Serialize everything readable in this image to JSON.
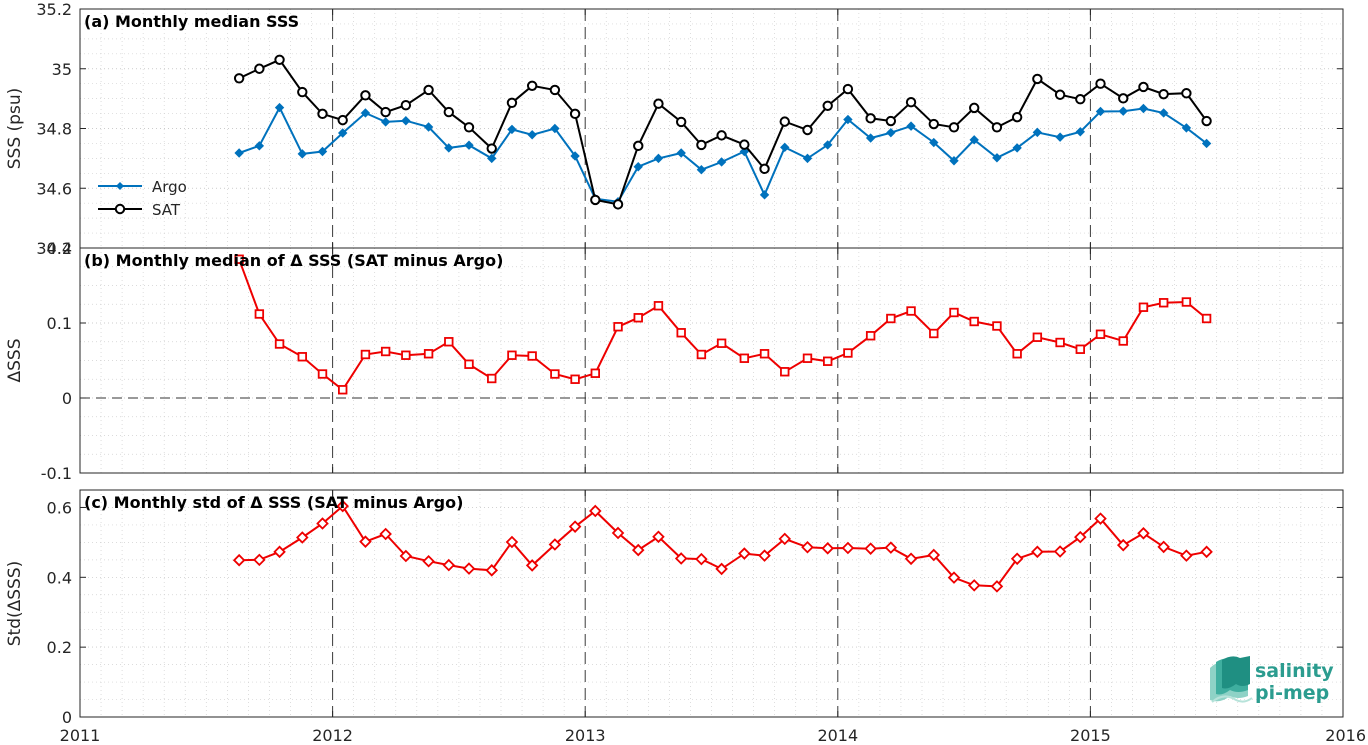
{
  "colors": {
    "argo": "#0072BD",
    "sat": "#000000",
    "delta": "#ee0000",
    "logo": "#2b9c8f"
  },
  "logo": {
    "icon": "salinity-wave-icon",
    "line1": "salinity",
    "line2": "pi-mep"
  },
  "x_ticks": [
    "2011",
    "2012",
    "2013",
    "2014",
    "2015",
    "2016"
  ],
  "chart_data": [
    {
      "type": "line",
      "title": "(a) Monthly median SSS",
      "ylabel": "SSS (psu)",
      "xlim": [
        2011,
        2016
      ],
      "ylim": [
        34.4,
        35.2
      ],
      "yticks": [
        "34.4",
        "34.6",
        "34.8",
        "35",
        "35.2"
      ],
      "legend_placement": "bottom-left",
      "x": [
        2011.63,
        2011.71,
        2011.79,
        2011.88,
        2011.96,
        2012.04,
        2012.13,
        2012.21,
        2012.29,
        2012.38,
        2012.46,
        2012.54,
        2012.63,
        2012.71,
        2012.79,
        2012.88,
        2012.96,
        2013.04,
        2013.13,
        2013.21,
        2013.29,
        2013.38,
        2013.46,
        2013.54,
        2013.63,
        2013.71,
        2013.79,
        2013.88,
        2013.96,
        2014.04,
        2014.13,
        2014.21,
        2014.29,
        2014.38,
        2014.46,
        2014.54,
        2014.63,
        2014.71,
        2014.79,
        2014.88,
        2014.96,
        2015.04,
        2015.13,
        2015.21,
        2015.29,
        2015.38,
        2015.46
      ],
      "series": [
        {
          "name": "Argo",
          "marker": "diamond",
          "values": [
            34.718,
            34.742,
            34.87,
            34.715,
            34.723,
            34.785,
            34.852,
            34.822,
            34.826,
            34.805,
            34.735,
            34.744,
            34.7,
            34.797,
            34.779,
            34.8,
            34.708,
            34.565,
            34.555,
            34.672,
            34.7,
            34.718,
            34.662,
            34.688,
            34.723,
            34.578,
            34.737,
            34.7,
            34.745,
            34.83,
            34.768,
            34.786,
            34.808,
            34.753,
            34.692,
            34.762,
            34.702,
            34.735,
            34.787,
            34.771,
            34.789,
            34.857,
            34.858,
            34.867,
            34.852,
            34.802,
            34.75
          ]
        },
        {
          "name": "SAT",
          "marker": "circle",
          "values": [
            34.968,
            35.0,
            35.03,
            34.922,
            34.849,
            34.828,
            34.911,
            34.855,
            34.878,
            34.929,
            34.855,
            34.804,
            34.733,
            34.886,
            34.943,
            34.929,
            34.849,
            34.561,
            34.546,
            34.742,
            34.883,
            34.822,
            34.745,
            34.777,
            34.746,
            34.665,
            34.823,
            34.795,
            34.876,
            34.932,
            34.834,
            34.825,
            34.888,
            34.815,
            34.804,
            34.869,
            34.804,
            34.838,
            34.966,
            34.913,
            34.898,
            34.95,
            34.901,
            34.939,
            34.915,
            34.918,
            34.825
          ]
        }
      ]
    },
    {
      "type": "line",
      "title": "(b) Monthly median of Δ SSS (SAT minus Argo)",
      "ylabel": "ΔSSS",
      "xlim": [
        2011,
        2016
      ],
      "ylim": [
        -0.1,
        0.2
      ],
      "yticks": [
        "-0.1",
        "0",
        "0.1",
        "0.2"
      ],
      "x": [
        2011.63,
        2011.71,
        2011.79,
        2011.88,
        2011.96,
        2012.04,
        2012.13,
        2012.21,
        2012.29,
        2012.38,
        2012.46,
        2012.54,
        2012.63,
        2012.71,
        2012.79,
        2012.88,
        2012.96,
        2013.04,
        2013.13,
        2013.21,
        2013.29,
        2013.38,
        2013.46,
        2013.54,
        2013.63,
        2013.71,
        2013.79,
        2013.88,
        2013.96,
        2014.04,
        2014.13,
        2014.21,
        2014.29,
        2014.38,
        2014.46,
        2014.54,
        2014.63,
        2014.71,
        2014.79,
        2014.88,
        2014.96,
        2015.04,
        2015.13,
        2015.21,
        2015.29,
        2015.38,
        2015.46
      ],
      "series": [
        {
          "marker": "square",
          "values": [
            0.185,
            0.112,
            0.072,
            0.055,
            0.032,
            0.011,
            0.058,
            0.062,
            0.057,
            0.059,
            0.075,
            0.045,
            0.026,
            0.057,
            0.056,
            0.032,
            0.025,
            0.033,
            0.095,
            0.107,
            0.123,
            0.087,
            0.058,
            0.073,
            0.053,
            0.059,
            0.035,
            0.053,
            0.049,
            0.06,
            0.083,
            0.106,
            0.116,
            0.086,
            0.114,
            0.102,
            0.096,
            0.059,
            0.081,
            0.074,
            0.065,
            0.085,
            0.076,
            0.121,
            0.127,
            0.128,
            0.106
          ]
        }
      ]
    },
    {
      "type": "line",
      "title": "(c) Monthly std of Δ SSS (SAT minus Argo)",
      "ylabel": "Std(ΔSSS)",
      "xlim": [
        2011,
        2016
      ],
      "ylim": [
        0,
        0.65
      ],
      "yticks": [
        "0",
        "0.2",
        "0.4",
        "0.6"
      ],
      "x": [
        2011.63,
        2011.71,
        2011.79,
        2011.88,
        2011.96,
        2012.04,
        2012.13,
        2012.21,
        2012.29,
        2012.38,
        2012.46,
        2012.54,
        2012.63,
        2012.71,
        2012.79,
        2012.88,
        2012.96,
        2013.04,
        2013.13,
        2013.21,
        2013.29,
        2013.38,
        2013.46,
        2013.54,
        2013.63,
        2013.71,
        2013.79,
        2013.88,
        2013.96,
        2014.04,
        2014.13,
        2014.21,
        2014.29,
        2014.38,
        2014.46,
        2014.54,
        2014.63,
        2014.71,
        2014.79,
        2014.88,
        2014.96,
        2015.04,
        2015.13,
        2015.21,
        2015.29,
        2015.38,
        2015.46
      ],
      "series": [
        {
          "marker": "diamond-open",
          "values": [
            0.449,
            0.45,
            0.473,
            0.514,
            0.554,
            0.604,
            0.502,
            0.524,
            0.461,
            0.446,
            0.435,
            0.425,
            0.42,
            0.501,
            0.434,
            0.494,
            0.545,
            0.59,
            0.527,
            0.478,
            0.516,
            0.454,
            0.452,
            0.424,
            0.468,
            0.462,
            0.51,
            0.486,
            0.483,
            0.484,
            0.482,
            0.485,
            0.453,
            0.464,
            0.399,
            0.377,
            0.374,
            0.453,
            0.473,
            0.474,
            0.515,
            0.568,
            0.492,
            0.526,
            0.487,
            0.462,
            0.473
          ]
        }
      ]
    }
  ]
}
